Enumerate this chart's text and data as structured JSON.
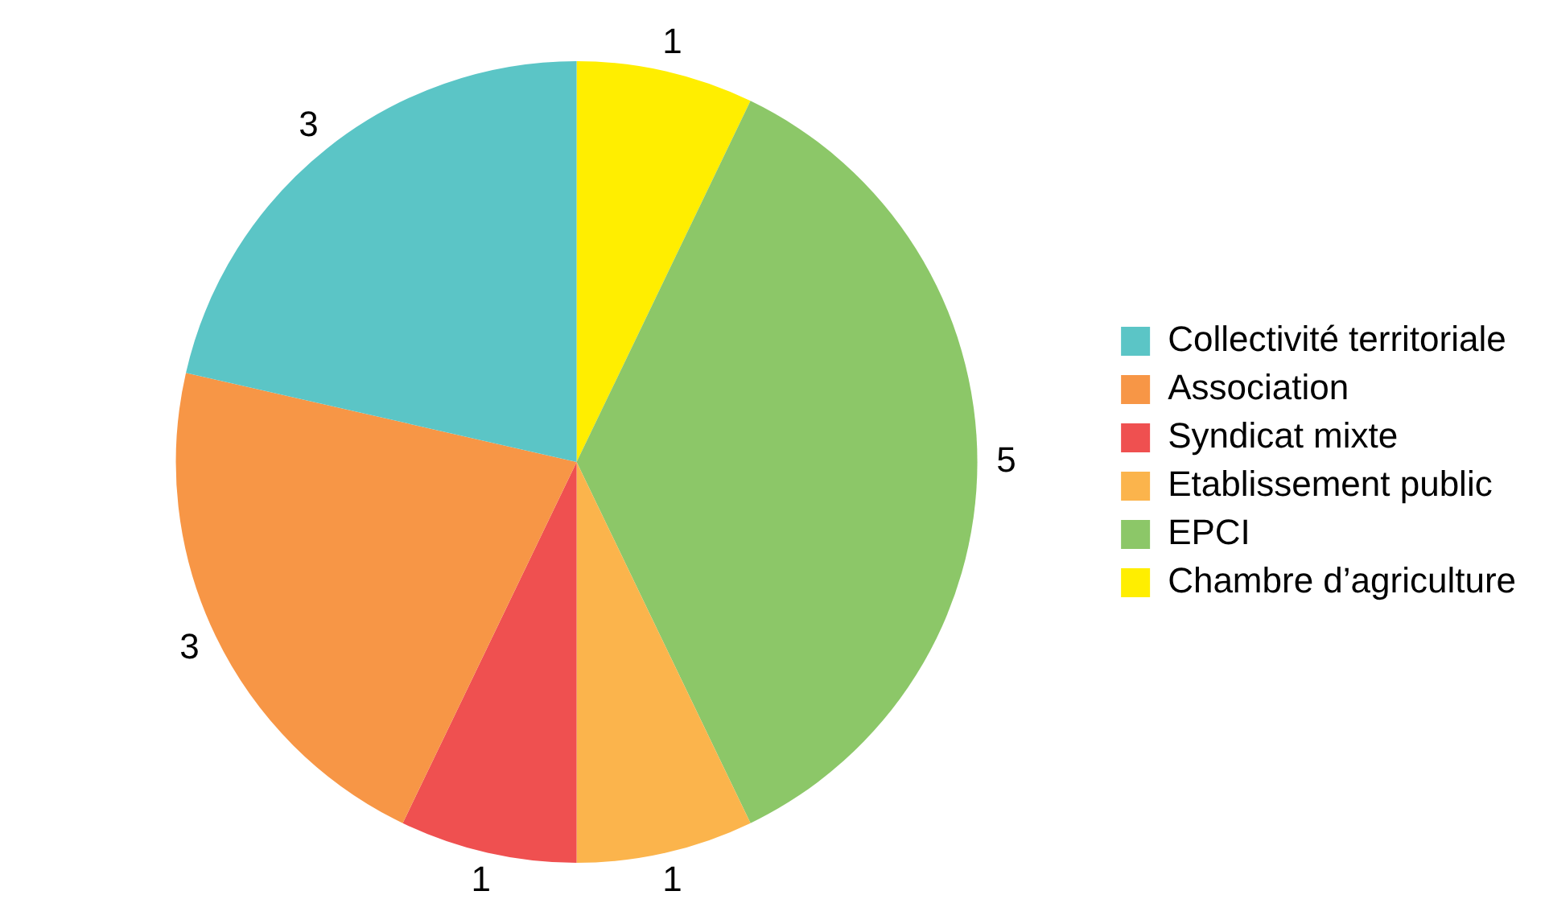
{
  "chart_data": {
    "type": "pie",
    "categories": [
      "Collectivité territoriale",
      "Association",
      "Syndicat mixte",
      "Etablissement public",
      "EPCI",
      "Chambre d’agriculture"
    ],
    "values": [
      3,
      3,
      1,
      1,
      5,
      1
    ],
    "colors": [
      "#5bc5c6",
      "#f79646",
      "#ef5050",
      "#fbb44c",
      "#8cc768",
      "#ffee00"
    ],
    "data_labels": true,
    "legend": "right"
  }
}
